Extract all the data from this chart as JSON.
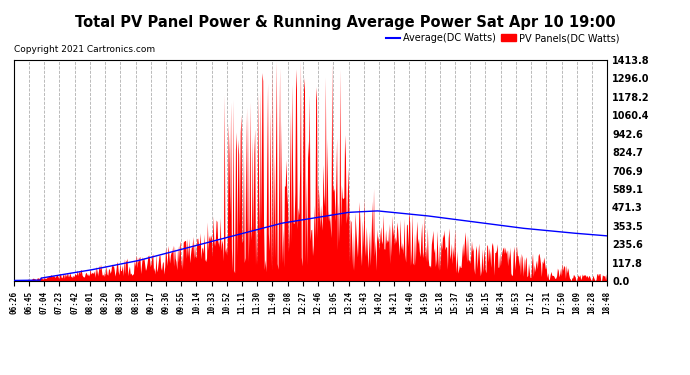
{
  "title": "Total PV Panel Power & Running Average Power Sat Apr 10 19:00",
  "copyright": "Copyright 2021 Cartronics.com",
  "legend_avg": "Average(DC Watts)",
  "legend_pv": "PV Panels(DC Watts)",
  "yticks": [
    0.0,
    117.8,
    235.6,
    353.5,
    471.3,
    589.1,
    706.9,
    824.7,
    942.6,
    1060.4,
    1178.2,
    1296.0,
    1413.8
  ],
  "ymax": 1413.8,
  "ymin": 0.0,
  "xtick_labels": [
    "06:26",
    "06:45",
    "07:04",
    "07:23",
    "07:42",
    "08:01",
    "08:20",
    "08:39",
    "08:58",
    "09:17",
    "09:36",
    "09:55",
    "10:14",
    "10:33",
    "10:52",
    "11:11",
    "11:30",
    "11:49",
    "12:08",
    "12:27",
    "12:46",
    "13:05",
    "13:24",
    "13:43",
    "14:02",
    "14:21",
    "14:40",
    "14:59",
    "15:18",
    "15:37",
    "15:56",
    "16:15",
    "16:34",
    "16:53",
    "17:12",
    "17:31",
    "17:50",
    "18:09",
    "18:28",
    "18:48"
  ],
  "bg_color": "#ffffff",
  "grid_color": "#b0b0b0",
  "fill_color": "#ff0000",
  "line_avg_color": "#0000ff",
  "title_color": "#000000",
  "copyright_color": "#000000",
  "legend_avg_color": "#0000ff",
  "legend_pv_color": "#ff0000"
}
